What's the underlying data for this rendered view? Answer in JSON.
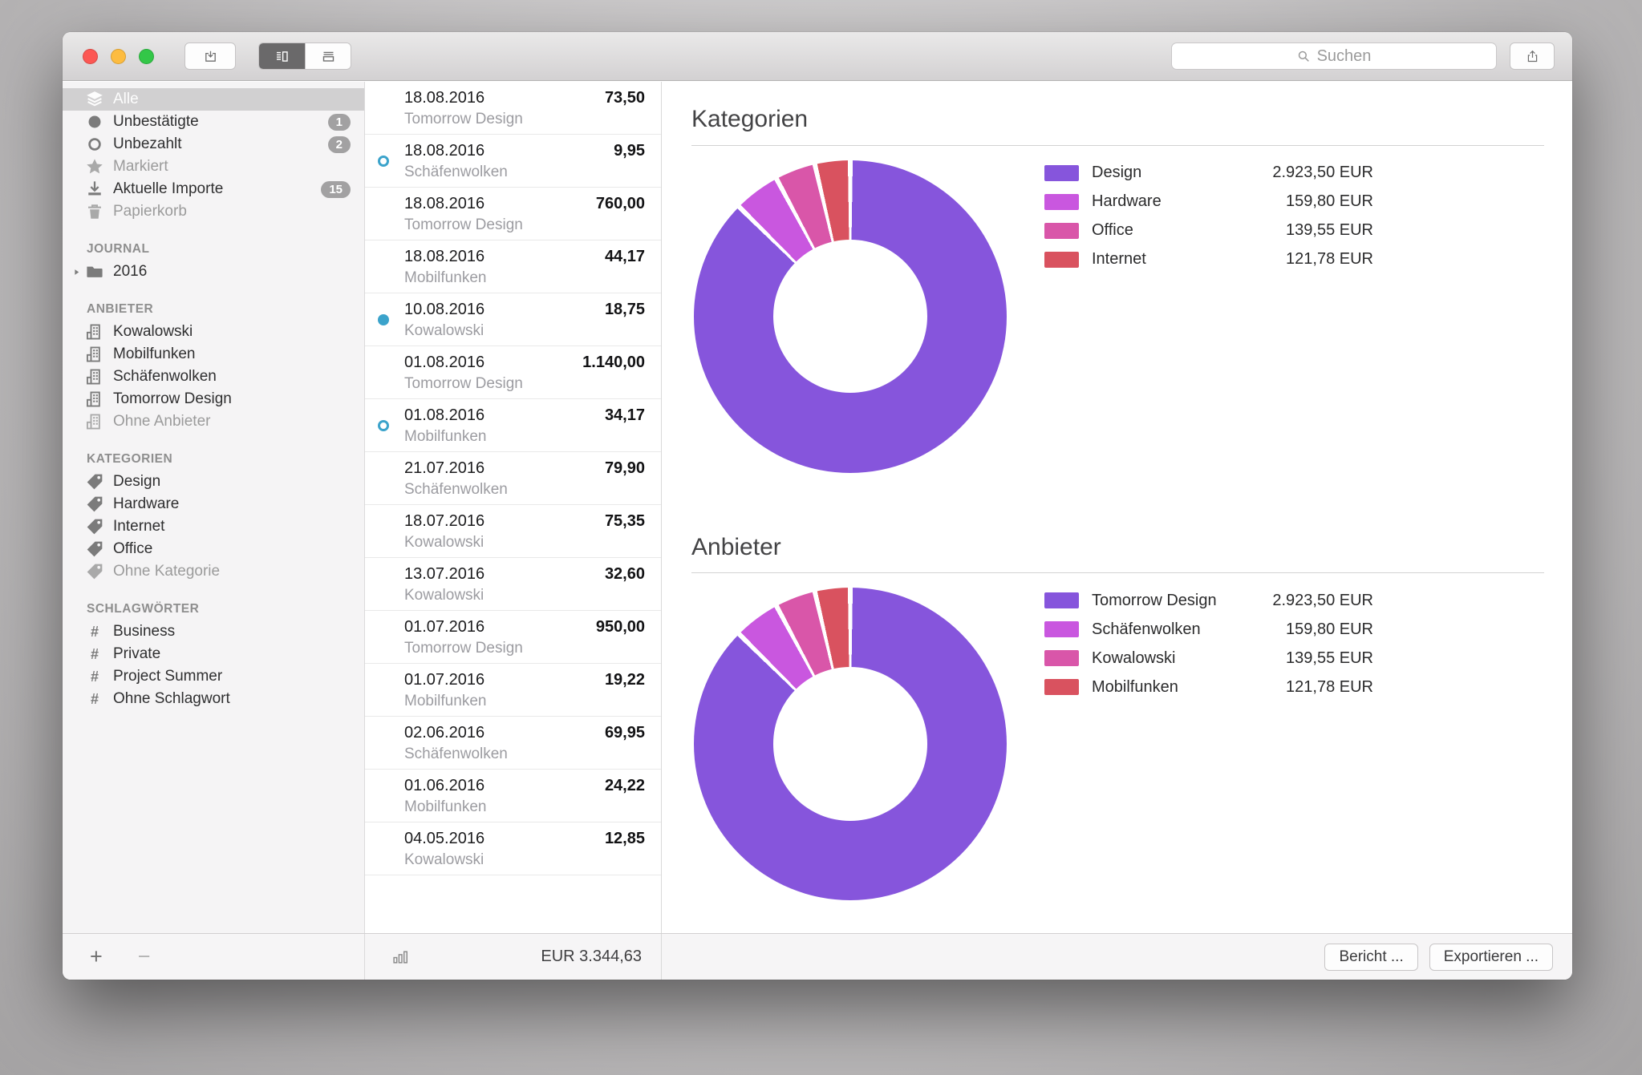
{
  "titlebar": {
    "traffic_lights": [
      {
        "name": "close",
        "color": "#fc5753"
      },
      {
        "name": "minimize",
        "color": "#fdbc40"
      },
      {
        "name": "zoom",
        "color": "#33c748"
      }
    ],
    "import_button": {
      "icon": "import-tray-icon"
    },
    "view_segments": [
      {
        "icon": "list-detail-view-icon",
        "selected": true
      },
      {
        "icon": "stacked-view-icon",
        "selected": false
      }
    ],
    "search": {
      "placeholder": "Suchen",
      "icon": "search-icon"
    },
    "share_button": {
      "icon": "share-icon"
    }
  },
  "sidebar": {
    "smart_items": [
      {
        "label": "Alle",
        "icon": "layers-icon",
        "selected": true
      },
      {
        "label": "Unbestätigte",
        "icon": "circle-filled-icon",
        "badge": "1"
      },
      {
        "label": "Unbezahlt",
        "icon": "circle-open-icon",
        "badge": "2"
      },
      {
        "label": "Markiert",
        "icon": "star-icon",
        "dimmed": true
      },
      {
        "label": "Aktuelle Importe",
        "icon": "download-icon",
        "badge": "15"
      },
      {
        "label": "Papierkorb",
        "icon": "trash-icon",
        "dimmed": true
      }
    ],
    "sections": [
      {
        "title": "JOURNAL",
        "items": [
          {
            "label": "2016",
            "icon": "folder-icon",
            "disclosure": true
          }
        ]
      },
      {
        "title": "ANBIETER",
        "items": [
          {
            "label": "Kowalowski",
            "icon": "building-icon"
          },
          {
            "label": "Mobilfunken",
            "icon": "building-icon"
          },
          {
            "label": "Schäfenwolken",
            "icon": "building-icon"
          },
          {
            "label": "Tomorrow Design",
            "icon": "building-icon"
          },
          {
            "label": "Ohne Anbieter",
            "icon": "building-icon",
            "dimmed": true
          }
        ]
      },
      {
        "title": "KATEGORIEN",
        "items": [
          {
            "label": "Design",
            "icon": "tag-icon"
          },
          {
            "label": "Hardware",
            "icon": "tag-icon"
          },
          {
            "label": "Internet",
            "icon": "tag-icon"
          },
          {
            "label": "Office",
            "icon": "tag-icon"
          },
          {
            "label": "Ohne Kategorie",
            "icon": "tag-icon",
            "dimmed": true
          }
        ]
      },
      {
        "title": "SCHLAGWÖRTER",
        "items": [
          {
            "label": "Business",
            "icon": "hash-icon"
          },
          {
            "label": "Private",
            "icon": "hash-icon"
          },
          {
            "label": "Project Summer",
            "icon": "hash-icon"
          },
          {
            "label": "Ohne Schlagwort",
            "icon": "hash-icon"
          }
        ]
      }
    ],
    "footer": {
      "add_label": "+",
      "remove_label": "−"
    }
  },
  "list": {
    "items": [
      {
        "date": "18.08.2016",
        "vendor": "Tomorrow Design",
        "amount": "73,50",
        "status": "none"
      },
      {
        "date": "18.08.2016",
        "vendor": "Schäfenwolken",
        "amount": "9,95",
        "status": "unpaid"
      },
      {
        "date": "18.08.2016",
        "vendor": "Tomorrow Design",
        "amount": "760,00",
        "status": "none"
      },
      {
        "date": "18.08.2016",
        "vendor": "Mobilfunken",
        "amount": "44,17",
        "status": "none"
      },
      {
        "date": "10.08.2016",
        "vendor": "Kowalowski",
        "amount": "18,75",
        "status": "unconfirmed"
      },
      {
        "date": "01.08.2016",
        "vendor": "Tomorrow Design",
        "amount": "1.140,00",
        "status": "none"
      },
      {
        "date": "01.08.2016",
        "vendor": "Mobilfunken",
        "amount": "34,17",
        "status": "unpaid"
      },
      {
        "date": "21.07.2016",
        "vendor": "Schäfenwolken",
        "amount": "79,90",
        "status": "none"
      },
      {
        "date": "18.07.2016",
        "vendor": "Kowalowski",
        "amount": "75,35",
        "status": "none"
      },
      {
        "date": "13.07.2016",
        "vendor": "Kowalowski",
        "amount": "32,60",
        "status": "none"
      },
      {
        "date": "01.07.2016",
        "vendor": "Tomorrow Design",
        "amount": "950,00",
        "status": "none"
      },
      {
        "date": "01.07.2016",
        "vendor": "Mobilfunken",
        "amount": "19,22",
        "status": "none"
      },
      {
        "date": "02.06.2016",
        "vendor": "Schäfenwolken",
        "amount": "69,95",
        "status": "none"
      },
      {
        "date": "01.06.2016",
        "vendor": "Mobilfunken",
        "amount": "24,22",
        "status": "none"
      },
      {
        "date": "04.05.2016",
        "vendor": "Kowalowski",
        "amount": "12,85",
        "status": "none"
      }
    ],
    "footer": {
      "icon": "bar-chart-icon",
      "total": "EUR 3.344,63"
    }
  },
  "detail": {
    "footer": {
      "report_label": "Bericht ...",
      "export_label": "Exportieren ..."
    }
  },
  "status_colors": {
    "dot": "#3BA3CB"
  },
  "chart_data": [
    {
      "type": "pie",
      "variant": "donut",
      "title": "Kategorien",
      "categories": [
        "Design",
        "Hardware",
        "Office",
        "Internet"
      ],
      "values": [
        2923.5,
        159.8,
        139.55,
        121.78
      ],
      "value_labels": [
        "2.923,50 EUR",
        "159,80 EUR",
        "139,55 EUR",
        "121,78 EUR"
      ],
      "colors": [
        "#8655DC",
        "#C957DF",
        "#D956A9",
        "#D9525F"
      ],
      "legend_position": "right",
      "start_angle_deg": 0,
      "direction": "clockwise",
      "total": 3344.63
    },
    {
      "type": "pie",
      "variant": "donut",
      "title": "Anbieter",
      "categories": [
        "Tomorrow Design",
        "Schäfenwolken",
        "Kowalowski",
        "Mobilfunken"
      ],
      "values": [
        2923.5,
        159.8,
        139.55,
        121.78
      ],
      "value_labels": [
        "2.923,50 EUR",
        "159,80 EUR",
        "139,55 EUR",
        "121,78 EUR"
      ],
      "colors": [
        "#8655DC",
        "#C957DF",
        "#D956A9",
        "#D9525F"
      ],
      "legend_position": "right",
      "start_angle_deg": 0,
      "direction": "clockwise",
      "total": 3344.63
    }
  ]
}
